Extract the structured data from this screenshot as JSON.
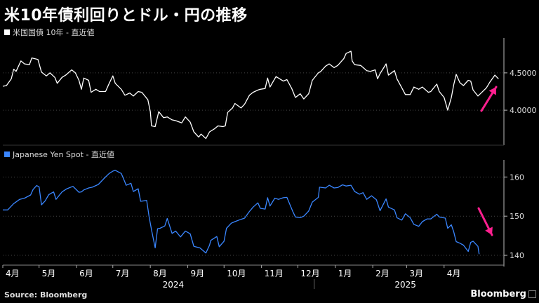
{
  "title": "米10年債利回りとドル・円の推移",
  "source": "Source: Bloomberg",
  "brand": "Bloomberg",
  "colors": {
    "background": "#000000",
    "upper_line": "#ffffff",
    "lower_line": "#3a86ff",
    "arrow": "#ff1f8f",
    "grid": "#555555"
  },
  "chart_data": [
    {
      "type": "line",
      "title": "",
      "series": [
        {
          "name": "米国国債 10年 - 直近値",
          "color": "#ffffff"
        }
      ],
      "y_ticks": [
        "4.0000",
        "4.5000"
      ],
      "ylim": [
        3.55,
        4.95
      ],
      "x_start": "2024-04-01",
      "x_end": "2025-04-30",
      "points": [
        [
          "2024-04-01",
          4.32
        ],
        [
          "2024-04-04",
          4.33
        ],
        [
          "2024-04-08",
          4.42
        ],
        [
          "2024-04-10",
          4.55
        ],
        [
          "2024-04-12",
          4.52
        ],
        [
          "2024-04-16",
          4.66
        ],
        [
          "2024-04-19",
          4.62
        ],
        [
          "2024-04-23",
          4.61
        ],
        [
          "2024-04-25",
          4.7
        ],
        [
          "2024-04-30",
          4.68
        ],
        [
          "2024-05-03",
          4.51
        ],
        [
          "2024-05-07",
          4.46
        ],
        [
          "2024-05-10",
          4.5
        ],
        [
          "2024-05-14",
          4.44
        ],
        [
          "2024-05-16",
          4.36
        ],
        [
          "2024-05-20",
          4.44
        ],
        [
          "2024-05-23",
          4.47
        ],
        [
          "2024-05-28",
          4.54
        ],
        [
          "2024-05-31",
          4.5
        ],
        [
          "2024-06-03",
          4.4
        ],
        [
          "2024-06-05",
          4.28
        ],
        [
          "2024-06-07",
          4.43
        ],
        [
          "2024-06-11",
          4.4
        ],
        [
          "2024-06-13",
          4.24
        ],
        [
          "2024-06-17",
          4.28
        ],
        [
          "2024-06-20",
          4.25
        ],
        [
          "2024-06-25",
          4.25
        ],
        [
          "2024-06-28",
          4.36
        ],
        [
          "2024-07-01",
          4.46
        ],
        [
          "2024-07-03",
          4.36
        ],
        [
          "2024-07-08",
          4.28
        ],
        [
          "2024-07-11",
          4.2
        ],
        [
          "2024-07-15",
          4.23
        ],
        [
          "2024-07-18",
          4.19
        ],
        [
          "2024-07-22",
          4.25
        ],
        [
          "2024-07-25",
          4.24
        ],
        [
          "2024-07-30",
          4.14
        ],
        [
          "2024-08-01",
          3.98
        ],
        [
          "2024-08-02",
          3.79
        ],
        [
          "2024-08-05",
          3.78
        ],
        [
          "2024-08-08",
          3.98
        ],
        [
          "2024-08-12",
          3.9
        ],
        [
          "2024-08-15",
          3.91
        ],
        [
          "2024-08-19",
          3.87
        ],
        [
          "2024-08-22",
          3.86
        ],
        [
          "2024-08-27",
          3.83
        ],
        [
          "2024-08-30",
          3.91
        ],
        [
          "2024-09-03",
          3.84
        ],
        [
          "2024-09-06",
          3.71
        ],
        [
          "2024-09-10",
          3.64
        ],
        [
          "2024-09-12",
          3.68
        ],
        [
          "2024-09-16",
          3.62
        ],
        [
          "2024-09-19",
          3.71
        ],
        [
          "2024-09-23",
          3.75
        ],
        [
          "2024-09-26",
          3.79
        ],
        [
          "2024-09-30",
          3.78
        ],
        [
          "2024-10-02",
          3.79
        ],
        [
          "2024-10-04",
          3.97
        ],
        [
          "2024-10-08",
          4.03
        ],
        [
          "2024-10-10",
          4.09
        ],
        [
          "2024-10-15",
          4.03
        ],
        [
          "2024-10-18",
          4.08
        ],
        [
          "2024-10-22",
          4.2
        ],
        [
          "2024-10-25",
          4.24
        ],
        [
          "2024-10-29",
          4.27
        ],
        [
          "2024-10-31",
          4.28
        ],
        [
          "2024-11-04",
          4.29
        ],
        [
          "2024-11-06",
          4.43
        ],
        [
          "2024-11-08",
          4.31
        ],
        [
          "2024-11-13",
          4.45
        ],
        [
          "2024-11-15",
          4.43
        ],
        [
          "2024-11-19",
          4.39
        ],
        [
          "2024-11-22",
          4.41
        ],
        [
          "2024-11-26",
          4.29
        ],
        [
          "2024-11-29",
          4.17
        ],
        [
          "2024-12-03",
          4.22
        ],
        [
          "2024-12-06",
          4.15
        ],
        [
          "2024-12-10",
          4.22
        ],
        [
          "2024-12-13",
          4.4
        ],
        [
          "2024-12-18",
          4.5
        ],
        [
          "2024-12-20",
          4.52
        ],
        [
          "2024-12-24",
          4.59
        ],
        [
          "2024-12-27",
          4.62
        ],
        [
          "2024-12-31",
          4.57
        ],
        [
          "2025-01-03",
          4.6
        ],
        [
          "2025-01-08",
          4.69
        ],
        [
          "2025-01-10",
          4.76
        ],
        [
          "2025-01-14",
          4.79
        ],
        [
          "2025-01-15",
          4.66
        ],
        [
          "2025-01-17",
          4.61
        ],
        [
          "2025-01-22",
          4.6
        ],
        [
          "2025-01-27",
          4.53
        ],
        [
          "2025-01-30",
          4.52
        ],
        [
          "2025-02-03",
          4.54
        ],
        [
          "2025-02-05",
          4.42
        ],
        [
          "2025-02-07",
          4.49
        ],
        [
          "2025-02-12",
          4.62
        ],
        [
          "2025-02-14",
          4.47
        ],
        [
          "2025-02-19",
          4.53
        ],
        [
          "2025-02-21",
          4.42
        ],
        [
          "2025-02-25",
          4.3
        ],
        [
          "2025-02-28",
          4.21
        ],
        [
          "2025-03-04",
          4.21
        ],
        [
          "2025-03-07",
          4.31
        ],
        [
          "2025-03-11",
          4.28
        ],
        [
          "2025-03-14",
          4.31
        ],
        [
          "2025-03-19",
          4.24
        ],
        [
          "2025-03-21",
          4.25
        ],
        [
          "2025-03-26",
          4.35
        ],
        [
          "2025-03-28",
          4.25
        ],
        [
          "2025-04-01",
          4.17
        ],
        [
          "2025-04-04",
          4.0
        ],
        [
          "2025-04-07",
          4.17
        ],
        [
          "2025-04-09",
          4.34
        ],
        [
          "2025-04-11",
          4.48
        ],
        [
          "2025-04-14",
          4.37
        ],
        [
          "2025-04-17",
          4.33
        ],
        [
          "2025-04-21",
          4.4
        ],
        [
          "2025-04-23",
          4.39
        ],
        [
          "2025-04-25",
          4.27
        ],
        [
          "2025-04-29",
          4.19
        ],
        [
          "2025-05-01",
          4.22
        ],
        [
          "2025-05-06",
          4.3
        ],
        [
          "2025-05-09",
          4.38
        ],
        [
          "2025-05-13",
          4.47
        ],
        [
          "2025-05-16",
          4.42
        ]
      ]
    },
    {
      "type": "line",
      "title": "",
      "series": [
        {
          "name": "Japanese Yen Spot - 直近値",
          "color": "#3a86ff"
        }
      ],
      "y_ticks": [
        "140",
        "150",
        "160"
      ],
      "ylim": [
        137.5,
        164
      ],
      "x_start": "2024-04-01",
      "x_end": "2025-04-30",
      "points": [
        [
          "2024-04-01",
          151.6
        ],
        [
          "2024-04-05",
          151.6
        ],
        [
          "2024-04-10",
          153.2
        ],
        [
          "2024-04-15",
          154.3
        ],
        [
          "2024-04-19",
          154.6
        ],
        [
          "2024-04-24",
          155.4
        ],
        [
          "2024-04-26",
          156.8
        ],
        [
          "2024-04-29",
          157.8
        ],
        [
          "2024-05-01",
          157.5
        ],
        [
          "2024-05-03",
          152.9
        ],
        [
          "2024-05-06",
          153.9
        ],
        [
          "2024-05-09",
          155.5
        ],
        [
          "2024-05-13",
          156.2
        ],
        [
          "2024-05-15",
          154.3
        ],
        [
          "2024-05-20",
          156.2
        ],
        [
          "2024-05-24",
          157.0
        ],
        [
          "2024-05-29",
          157.6
        ],
        [
          "2024-06-03",
          156.1
        ],
        [
          "2024-06-05",
          156.2
        ],
        [
          "2024-06-07",
          156.7
        ],
        [
          "2024-06-11",
          157.2
        ],
        [
          "2024-06-14",
          157.4
        ],
        [
          "2024-06-19",
          158.1
        ],
        [
          "2024-06-24",
          159.7
        ],
        [
          "2024-06-28",
          160.9
        ],
        [
          "2024-07-01",
          161.5
        ],
        [
          "2024-07-03",
          161.7
        ],
        [
          "2024-07-08",
          160.9
        ],
        [
          "2024-07-11",
          158.7
        ],
        [
          "2024-07-12",
          157.9
        ],
        [
          "2024-07-16",
          158.4
        ],
        [
          "2024-07-18",
          156.3
        ],
        [
          "2024-07-22",
          157.0
        ],
        [
          "2024-07-24",
          153.8
        ],
        [
          "2024-07-29",
          154.0
        ],
        [
          "2024-07-31",
          149.9
        ],
        [
          "2024-08-02",
          146.5
        ],
        [
          "2024-08-05",
          141.9
        ],
        [
          "2024-08-07",
          146.8
        ],
        [
          "2024-08-09",
          146.9
        ],
        [
          "2024-08-13",
          147.5
        ],
        [
          "2024-08-15",
          149.4
        ],
        [
          "2024-08-19",
          145.6
        ],
        [
          "2024-08-22",
          146.2
        ],
        [
          "2024-08-26",
          144.7
        ],
        [
          "2024-08-30",
          146.2
        ],
        [
          "2024-09-03",
          145.5
        ],
        [
          "2024-09-06",
          142.3
        ],
        [
          "2024-09-11",
          141.9
        ],
        [
          "2024-09-16",
          140.6
        ],
        [
          "2024-09-19",
          142.6
        ],
        [
          "2024-09-20",
          143.8
        ],
        [
          "2024-09-25",
          144.8
        ],
        [
          "2024-09-27",
          142.2
        ],
        [
          "2024-10-01",
          143.6
        ],
        [
          "2024-10-03",
          146.9
        ],
        [
          "2024-10-07",
          148.2
        ],
        [
          "2024-10-10",
          148.6
        ],
        [
          "2024-10-15",
          149.2
        ],
        [
          "2024-10-18",
          149.5
        ],
        [
          "2024-10-22",
          151.2
        ],
        [
          "2024-10-25",
          152.3
        ],
        [
          "2024-10-29",
          153.4
        ],
        [
          "2024-10-31",
          152.0
        ],
        [
          "2024-11-04",
          151.8
        ],
        [
          "2024-11-06",
          154.7
        ],
        [
          "2024-11-08",
          152.6
        ],
        [
          "2024-11-12",
          154.6
        ],
        [
          "2024-11-15",
          154.3
        ],
        [
          "2024-11-19",
          154.7
        ],
        [
          "2024-11-22",
          154.8
        ],
        [
          "2024-11-27",
          151.1
        ],
        [
          "2024-11-29",
          149.8
        ],
        [
          "2024-12-03",
          149.6
        ],
        [
          "2024-12-06",
          150.0
        ],
        [
          "2024-12-10",
          151.3
        ],
        [
          "2024-12-13",
          153.6
        ],
        [
          "2024-12-18",
          154.8
        ],
        [
          "2024-12-19",
          157.4
        ],
        [
          "2024-12-24",
          157.2
        ],
        [
          "2024-12-27",
          157.9
        ],
        [
          "2024-12-31",
          157.2
        ],
        [
          "2025-01-03",
          157.3
        ],
        [
          "2025-01-07",
          158.0
        ],
        [
          "2025-01-10",
          157.7
        ],
        [
          "2025-01-14",
          157.9
        ],
        [
          "2025-01-17",
          156.3
        ],
        [
          "2025-01-21",
          155.6
        ],
        [
          "2025-01-24",
          156.0
        ],
        [
          "2025-01-27",
          154.3
        ],
        [
          "2025-01-31",
          155.2
        ],
        [
          "2025-02-04",
          154.2
        ],
        [
          "2025-02-07",
          151.4
        ],
        [
          "2025-02-12",
          154.4
        ],
        [
          "2025-02-14",
          152.3
        ],
        [
          "2025-02-19",
          151.6
        ],
        [
          "2025-02-21",
          149.6
        ],
        [
          "2025-02-25",
          149.0
        ],
        [
          "2025-02-28",
          150.6
        ],
        [
          "2025-03-04",
          149.6
        ],
        [
          "2025-03-07",
          147.9
        ],
        [
          "2025-03-11",
          147.4
        ],
        [
          "2025-03-14",
          148.6
        ],
        [
          "2025-03-18",
          149.3
        ],
        [
          "2025-03-21",
          149.3
        ],
        [
          "2025-03-26",
          150.5
        ],
        [
          "2025-03-28",
          149.8
        ],
        [
          "2025-04-02",
          149.5
        ],
        [
          "2025-04-04",
          146.9
        ],
        [
          "2025-04-07",
          147.8
        ],
        [
          "2025-04-09",
          146.0
        ],
        [
          "2025-04-11",
          143.5
        ],
        [
          "2025-04-14",
          143.1
        ],
        [
          "2025-04-17",
          142.6
        ],
        [
          "2025-04-21",
          141.0
        ],
        [
          "2025-04-23",
          143.3
        ],
        [
          "2025-04-25",
          143.6
        ],
        [
          "2025-04-29",
          142.3
        ],
        [
          "2025-04-30",
          140.3
        ]
      ]
    }
  ],
  "x_axis": {
    "months": [
      {
        "label": "4月",
        "date": "2024-04-01"
      },
      {
        "label": "5月",
        "date": "2024-05-01"
      },
      {
        "label": "6月",
        "date": "2024-06-01"
      },
      {
        "label": "7月",
        "date": "2024-07-01"
      },
      {
        "label": "8月",
        "date": "2024-08-01"
      },
      {
        "label": "9月",
        "date": "2024-09-01"
      },
      {
        "label": "10月",
        "date": "2024-10-01"
      },
      {
        "label": "11月",
        "date": "2024-11-01"
      },
      {
        "label": "12月",
        "date": "2024-12-01"
      },
      {
        "label": "1月",
        "date": "2025-01-01"
      },
      {
        "label": "2月",
        "date": "2025-02-01"
      },
      {
        "label": "3月",
        "date": "2025-03-01"
      },
      {
        "label": "4月",
        "date": "2025-04-01"
      }
    ],
    "years": [
      {
        "label": "2024",
        "date": "2024-08-20"
      },
      {
        "label": "2025",
        "date": "2025-02-28"
      }
    ]
  }
}
